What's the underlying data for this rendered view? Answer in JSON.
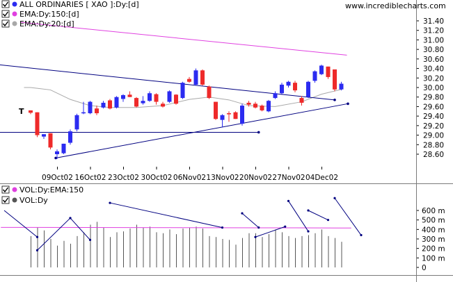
{
  "watermark": "www.incrediblecharts.com",
  "colors": {
    "up": "#2b2bf0",
    "down": "#ee2a2a",
    "ema150": "#e040e0",
    "ema20": "#a8a8a8",
    "trend": "#000080",
    "vol_bar": "#555555",
    "vol_ema": "#e040e0",
    "grid_sep": "#7a7a7a"
  },
  "legend": [
    {
      "label": "ALL ORDINARIES [ XAO ]:Dy:[d]",
      "color": "#2b2bf0",
      "icon": "check-icon"
    },
    {
      "label": "EMA:Dy:150:[d]",
      "color": "#e040e0",
      "icon": "check-icon"
    },
    {
      "label": "EMA:Dy:20:[d]",
      "color": "#a8a8a8",
      "icon": "check-icon"
    }
  ],
  "vol_legend": [
    {
      "label": "VOL:Dy:EMA:150",
      "color": "#e040e0",
      "icon": "check-icon"
    },
    {
      "label": "VOL:Dy",
      "color": "#555555",
      "icon": "check-icon"
    }
  ],
  "t_marker": "T",
  "chart_data": [
    {
      "type": "candlestick",
      "title": "ALL ORDINARIES [ XAO ]:Dy:[d]",
      "x_ticks": [
        "09Oct02",
        "16Oct02",
        "23Oct02",
        "30Oct02",
        "06Nov02",
        "13Nov02",
        "20Nov02",
        "27Nov02",
        "04Dec02"
      ],
      "y_ticks": [
        "31.40",
        "31.20",
        "31.00",
        "30.80",
        "30.60",
        "30.40",
        "30.20",
        "30.00",
        "29.80",
        "29.60",
        "29.40",
        "29.20",
        "29.00",
        "28.80",
        "28.60"
      ],
      "ylim": [
        28.4,
        31.55
      ],
      "candles": [
        {
          "o": 29.52,
          "h": 29.52,
          "l": 29.44,
          "c": 29.47
        },
        {
          "o": 29.48,
          "h": 29.48,
          "l": 28.96,
          "c": 29.0
        },
        {
          "o": 28.97,
          "h": 29.02,
          "l": 28.92,
          "c": 29.02
        },
        {
          "o": 29.04,
          "h": 29.04,
          "l": 28.7,
          "c": 28.74
        },
        {
          "o": 28.6,
          "h": 28.7,
          "l": 28.5,
          "c": 28.66
        },
        {
          "o": 28.62,
          "h": 28.82,
          "l": 28.6,
          "c": 28.82
        },
        {
          "o": 28.84,
          "h": 29.12,
          "l": 28.8,
          "c": 29.08
        },
        {
          "o": 29.12,
          "h": 29.45,
          "l": 29.08,
          "c": 29.42
        },
        {
          "o": 29.47,
          "h": 29.7,
          "l": 29.44,
          "c": 29.48
        },
        {
          "o": 29.46,
          "h": 29.72,
          "l": 29.44,
          "c": 29.7
        },
        {
          "o": 29.56,
          "h": 29.62,
          "l": 29.42,
          "c": 29.46
        },
        {
          "o": 29.58,
          "h": 29.72,
          "l": 29.56,
          "c": 29.68
        },
        {
          "o": 29.73,
          "h": 29.76,
          "l": 29.54,
          "c": 29.56
        },
        {
          "o": 29.58,
          "h": 29.82,
          "l": 29.56,
          "c": 29.8
        },
        {
          "o": 29.76,
          "h": 29.86,
          "l": 29.7,
          "c": 29.84
        },
        {
          "o": 29.85,
          "h": 29.92,
          "l": 29.8,
          "c": 29.8
        },
        {
          "o": 29.78,
          "h": 29.8,
          "l": 29.58,
          "c": 29.6
        },
        {
          "o": 29.67,
          "h": 29.82,
          "l": 29.64,
          "c": 29.72
        },
        {
          "o": 29.72,
          "h": 29.92,
          "l": 29.7,
          "c": 29.88
        },
        {
          "o": 29.86,
          "h": 29.88,
          "l": 29.64,
          "c": 29.7
        },
        {
          "o": 29.66,
          "h": 29.7,
          "l": 29.58,
          "c": 29.6
        },
        {
          "o": 29.7,
          "h": 29.94,
          "l": 29.68,
          "c": 29.92
        },
        {
          "o": 29.85,
          "h": 29.86,
          "l": 29.64,
          "c": 29.66
        },
        {
          "o": 29.78,
          "h": 30.12,
          "l": 29.76,
          "c": 30.1
        },
        {
          "o": 30.18,
          "h": 30.22,
          "l": 30.1,
          "c": 30.12
        },
        {
          "o": 30.06,
          "h": 30.4,
          "l": 30.04,
          "c": 30.36
        },
        {
          "o": 30.36,
          "h": 30.38,
          "l": 30.04,
          "c": 30.06
        },
        {
          "o": 30.02,
          "h": 30.04,
          "l": 29.76,
          "c": 29.78
        },
        {
          "o": 29.7,
          "h": 29.7,
          "l": 29.32,
          "c": 29.34
        },
        {
          "o": 29.32,
          "h": 29.44,
          "l": 29.16,
          "c": 29.42
        },
        {
          "o": 29.46,
          "h": 29.5,
          "l": 29.28,
          "c": 29.44
        },
        {
          "o": 29.48,
          "h": 29.5,
          "l": 29.34,
          "c": 29.34
        },
        {
          "o": 29.24,
          "h": 29.66,
          "l": 29.2,
          "c": 29.62
        },
        {
          "o": 29.68,
          "h": 29.72,
          "l": 29.6,
          "c": 29.64
        },
        {
          "o": 29.66,
          "h": 29.7,
          "l": 29.56,
          "c": 29.58
        },
        {
          "o": 29.62,
          "h": 29.64,
          "l": 29.5,
          "c": 29.52
        },
        {
          "o": 29.5,
          "h": 29.74,
          "l": 29.48,
          "c": 29.72
        },
        {
          "o": 29.78,
          "h": 29.92,
          "l": 29.76,
          "c": 29.88
        },
        {
          "o": 29.88,
          "h": 30.1,
          "l": 29.86,
          "c": 30.06
        },
        {
          "o": 30.04,
          "h": 30.14,
          "l": 30.0,
          "c": 30.12
        },
        {
          "o": 30.1,
          "h": 30.14,
          "l": 29.9,
          "c": 29.94
        },
        {
          "o": 29.78,
          "h": 29.82,
          "l": 29.62,
          "c": 29.68
        },
        {
          "o": 29.8,
          "h": 30.14,
          "l": 29.78,
          "c": 30.12
        },
        {
          "o": 30.14,
          "h": 30.36,
          "l": 30.1,
          "c": 30.34
        },
        {
          "o": 30.28,
          "h": 30.48,
          "l": 30.26,
          "c": 30.46
        },
        {
          "o": 30.44,
          "h": 30.44,
          "l": 30.18,
          "c": 30.22
        },
        {
          "o": 30.38,
          "h": 30.38,
          "l": 29.92,
          "c": 29.96
        },
        {
          "o": 29.96,
          "h": 30.12,
          "l": 29.94,
          "c": 30.08
        }
      ],
      "ema150": [
        [
          0,
          31.34
        ],
        [
          47,
          30.68
        ]
      ],
      "ema20": [
        [
          0,
          30.0
        ],
        [
          3,
          29.95
        ],
        [
          6,
          29.75
        ],
        [
          9,
          29.62
        ],
        [
          12,
          29.58
        ],
        [
          16,
          29.58
        ],
        [
          20,
          29.62
        ],
        [
          24,
          29.75
        ],
        [
          27,
          29.8
        ],
        [
          30,
          29.74
        ],
        [
          33,
          29.62
        ],
        [
          37,
          29.6
        ],
        [
          41,
          29.7
        ],
        [
          44,
          29.86
        ],
        [
          47,
          29.96
        ]
      ],
      "trendlines": [
        {
          "from": [
            -27,
            30.8
          ],
          "to": [
            46,
            29.74
          ]
        },
        {
          "from": [
            3.8,
            28.52
          ],
          "to": [
            48,
            29.66
          ]
        },
        {
          "from": [
            -27,
            29.06
          ],
          "to": [
            34.5,
            29.06
          ]
        }
      ],
      "ema20_start": [
        -1,
        30.0
      ]
    },
    {
      "type": "bar",
      "title": "VOL:Dy",
      "y_ticks": [
        "600 m",
        "500 m",
        "400 m",
        "300 m",
        "200 m",
        "100 m",
        "0"
      ],
      "ylim": [
        0,
        680
      ],
      "volumes": [
        330,
        420,
        390,
        300,
        230,
        280,
        250,
        330,
        370,
        450,
        480,
        420,
        320,
        370,
        380,
        410,
        450,
        420,
        430,
        370,
        360,
        400,
        350,
        410,
        420,
        430,
        410,
        330,
        320,
        300,
        290,
        240,
        310,
        360,
        360,
        320,
        350,
        400,
        370,
        330,
        310,
        330,
        340,
        360,
        400,
        330,
        310,
        270
      ],
      "vol_ema": [
        [
          0,
          422
        ],
        [
          14,
          420
        ],
        [
          28,
          418
        ],
        [
          40,
          417
        ],
        [
          47,
          415
        ]
      ],
      "trendlines": [
        {
          "from": [
            -4,
            600
          ],
          "to": [
            1,
            320
          ]
        },
        {
          "from": [
            1,
            180
          ],
          "to": [
            6,
            520
          ]
        },
        {
          "from": [
            6,
            520
          ],
          "to": [
            9,
            290
          ]
        },
        {
          "from": [
            12,
            680
          ],
          "to": [
            29,
            420
          ]
        },
        {
          "from": [
            32,
            570
          ],
          "to": [
            34.5,
            420
          ]
        },
        {
          "from": [
            34,
            320
          ],
          "to": [
            38.5,
            430
          ]
        },
        {
          "from": [
            39,
            700
          ],
          "to": [
            42,
            380
          ]
        },
        {
          "from": [
            42,
            600
          ],
          "to": [
            45,
            500
          ]
        },
        {
          "from": [
            46,
            730
          ],
          "to": [
            50,
            340
          ]
        }
      ]
    }
  ]
}
